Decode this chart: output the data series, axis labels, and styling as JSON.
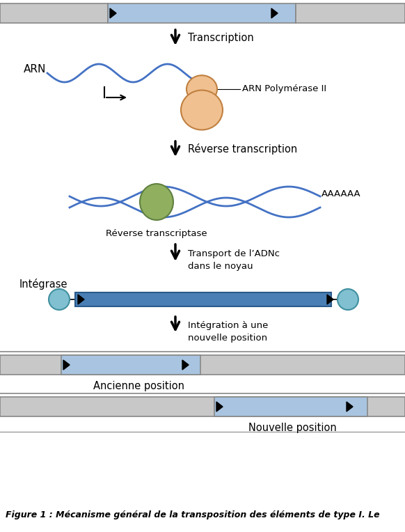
{
  "bg_color": "#ffffff",
  "gray_color": "#c8c8c8",
  "blue_color": "#a8c4e0",
  "blue_dark": "#4a7fb5",
  "peach_color": "#f0c090",
  "green_color": "#90b060",
  "green_light": "#b8cc88",
  "cyan_color": "#80c0d0",
  "wavy_blue": "#4472c4",
  "step1_text": "Transcription",
  "step2_text": "Réverse transcription",
  "step3_text": "Transport de l’ADNc\ndans le noyau",
  "step4_text": "Intégration à une\nnouvelle position",
  "label_arn": "ARN",
  "label_pol": "ARN Polymérase II",
  "label_rt": "Réverse transcriptase",
  "label_aaa": "AAAAAA",
  "label_int": "Intégrase",
  "label_old": "Ancienne position",
  "label_new": "Nouvelle position",
  "caption": "Figure 1 : Mécanisme général de la transposition des éléments de type I. Le"
}
